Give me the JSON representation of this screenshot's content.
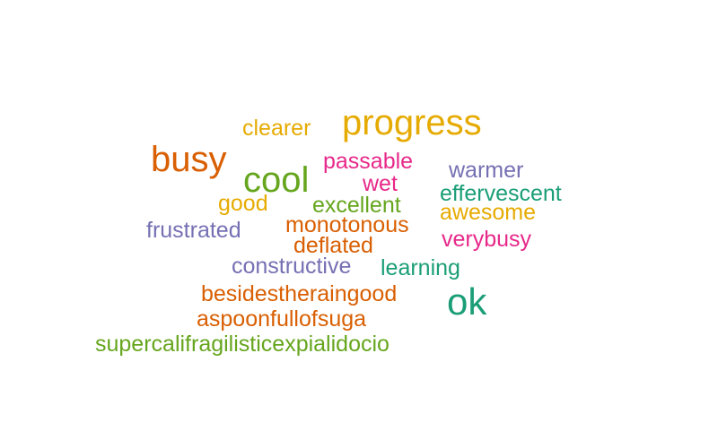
{
  "chart_data": {
    "type": "wordcloud",
    "palette": {
      "orange": "#d95f02",
      "purple": "#7570b3",
      "pink": "#e7298a",
      "green": "#66a61e",
      "gold": "#e6ab02",
      "teal": "#1b9e77"
    },
    "words": [
      {
        "text": "progress",
        "weight": 10,
        "color": "#e6ab02"
      },
      {
        "text": "ok",
        "weight": 10,
        "color": "#1b9e77"
      },
      {
        "text": "busy",
        "weight": 10,
        "color": "#d95f02"
      },
      {
        "text": "cool",
        "weight": 10,
        "color": "#66a61e"
      },
      {
        "text": "clearer",
        "weight": 3,
        "color": "#e6ab02"
      },
      {
        "text": "passable",
        "weight": 3,
        "color": "#e7298a"
      },
      {
        "text": "warmer",
        "weight": 3,
        "color": "#7570b3"
      },
      {
        "text": "wet",
        "weight": 3,
        "color": "#e7298a"
      },
      {
        "text": "good",
        "weight": 3,
        "color": "#e6ab02"
      },
      {
        "text": "excellent",
        "weight": 3,
        "color": "#66a61e"
      },
      {
        "text": "effervescent",
        "weight": 3,
        "color": "#1b9e77"
      },
      {
        "text": "awesome",
        "weight": 3,
        "color": "#e6ab02"
      },
      {
        "text": "frustrated",
        "weight": 3,
        "color": "#7570b3"
      },
      {
        "text": "monotonous",
        "weight": 3,
        "color": "#d95f02"
      },
      {
        "text": "verybusy",
        "weight": 3,
        "color": "#e7298a"
      },
      {
        "text": "deflated",
        "weight": 3,
        "color": "#d95f02"
      },
      {
        "text": "constructive",
        "weight": 3,
        "color": "#7570b3"
      },
      {
        "text": "learning",
        "weight": 3,
        "color": "#1b9e77"
      },
      {
        "text": "besidestheraingood",
        "weight": 3,
        "color": "#d95f02"
      },
      {
        "text": "aspoonfullofsuga",
        "weight": 3,
        "color": "#d95f02"
      },
      {
        "text": "supercalifragilisticexpialidocio",
        "weight": 3,
        "color": "#66a61e"
      }
    ]
  }
}
